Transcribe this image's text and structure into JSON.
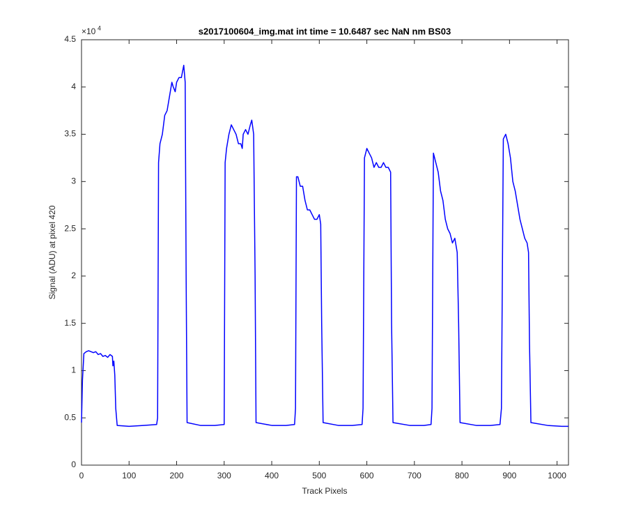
{
  "chart_data": {
    "type": "line",
    "title": "s2017100604_img.mat int time = 10.6487 sec  NaN nm BS03",
    "x_label": "Track Pixels",
    "y_label": "Signal (ADU) at pixel 420",
    "y_scale_label": "×10",
    "y_scale_exponent": "4",
    "color": "#0000ff",
    "xlim": [
      0,
      1024
    ],
    "ylim": [
      0,
      4.5
    ],
    "xticks": [
      0,
      100,
      200,
      300,
      400,
      500,
      600,
      700,
      800,
      900,
      1000
    ],
    "yticks": [
      0,
      0.5,
      1,
      1.5,
      2,
      2.5,
      3,
      3.5,
      4,
      4.5
    ],
    "grid": false,
    "x": [
      0,
      2,
      5,
      10,
      15,
      20,
      25,
      30,
      35,
      40,
      45,
      50,
      55,
      60,
      65,
      66,
      68,
      70,
      72,
      75,
      100,
      130,
      158,
      160,
      162,
      165,
      170,
      175,
      180,
      185,
      190,
      193,
      197,
      200,
      205,
      210,
      215,
      218,
      220,
      222,
      250,
      280,
      300,
      302,
      305,
      310,
      315,
      320,
      325,
      330,
      335,
      338,
      340,
      345,
      350,
      355,
      358,
      362,
      365,
      367,
      400,
      430,
      448,
      450,
      452,
      455,
      460,
      465,
      470,
      475,
      480,
      485,
      490,
      495,
      500,
      503,
      505,
      508,
      540,
      570,
      590,
      592,
      595,
      600,
      605,
      610,
      615,
      620,
      625,
      630,
      635,
      640,
      645,
      650,
      652,
      655,
      690,
      720,
      735,
      737,
      740,
      745,
      750,
      755,
      760,
      765,
      770,
      775,
      780,
      785,
      790,
      793,
      796,
      830,
      860,
      880,
      883,
      887,
      892,
      897,
      902,
      907,
      912,
      917,
      922,
      927,
      932,
      937,
      940,
      942,
      945,
      980,
      1010,
      1024
    ],
    "values": [
      0.45,
      0.9,
      1.18,
      1.2,
      1.21,
      1.2,
      1.19,
      1.2,
      1.17,
      1.18,
      1.15,
      1.16,
      1.14,
      1.17,
      1.15,
      1.05,
      1.1,
      0.95,
      0.6,
      0.42,
      0.41,
      0.42,
      0.43,
      0.5,
      3.2,
      3.4,
      3.5,
      3.7,
      3.75,
      3.9,
      4.05,
      4.0,
      3.95,
      4.05,
      4.1,
      4.1,
      4.23,
      4.05,
      2.0,
      0.45,
      0.42,
      0.42,
      0.43,
      3.2,
      3.35,
      3.5,
      3.6,
      3.55,
      3.5,
      3.4,
      3.4,
      3.35,
      3.5,
      3.55,
      3.5,
      3.6,
      3.65,
      3.5,
      2.0,
      0.45,
      0.42,
      0.42,
      0.43,
      0.6,
      3.05,
      3.05,
      2.95,
      2.95,
      2.8,
      2.7,
      2.7,
      2.65,
      2.6,
      2.6,
      2.65,
      2.55,
      1.5,
      0.45,
      0.42,
      0.42,
      0.43,
      0.6,
      3.25,
      3.35,
      3.3,
      3.25,
      3.15,
      3.2,
      3.15,
      3.15,
      3.2,
      3.15,
      3.15,
      3.1,
      1.5,
      0.45,
      0.42,
      0.42,
      0.43,
      0.6,
      3.3,
      3.2,
      3.1,
      2.9,
      2.8,
      2.6,
      2.5,
      2.45,
      2.35,
      2.4,
      2.25,
      1.5,
      0.45,
      0.42,
      0.42,
      0.43,
      0.6,
      3.45,
      3.5,
      3.4,
      3.25,
      3.0,
      2.9,
      2.75,
      2.6,
      2.5,
      2.4,
      2.35,
      2.25,
      1.3,
      0.45,
      0.42,
      0.41,
      0.41
    ]
  }
}
